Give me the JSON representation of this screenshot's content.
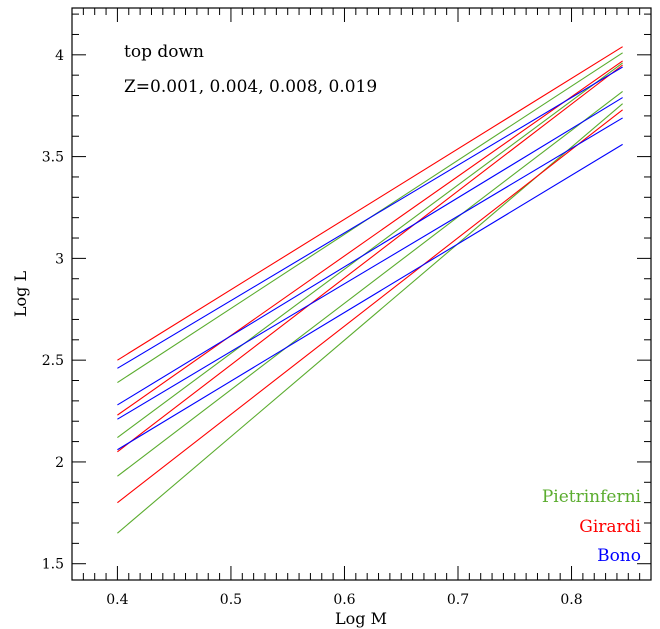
{
  "chart_data": {
    "type": "line",
    "title": "",
    "xlabel": "Log M",
    "ylabel": "Log L",
    "xlim": [
      0.36,
      0.87
    ],
    "ylim": [
      1.42,
      4.23
    ],
    "x_ticks": [
      0.4,
      0.5,
      0.6,
      0.7,
      0.8
    ],
    "x_tick_labels": [
      "0.4",
      "0.5",
      "0.6",
      "0.7",
      "0.8"
    ],
    "y_ticks": [
      1.5,
      2,
      2.5,
      3,
      3.5,
      4
    ],
    "y_tick_labels": [
      "1.5",
      "2",
      "2.5",
      "3",
      "3.5",
      "4"
    ],
    "grid": false,
    "legend_position": "bottom-right",
    "annotations": [
      "top down",
      "Z=0.001, 0.004, 0.008, 0.019"
    ],
    "groups": [
      {
        "name": "Pietrinferni",
        "color": "#5aac2e"
      },
      {
        "name": "Girardi",
        "color": "#ff0000"
      },
      {
        "name": "Bono",
        "color": "#0000ff"
      }
    ],
    "series": [
      {
        "group": "Pietrinferni",
        "color": "#5aac2e",
        "x": [
          0.4,
          0.845
        ],
        "y": [
          2.39,
          4.01
        ]
      },
      {
        "group": "Pietrinferni",
        "color": "#5aac2e",
        "x": [
          0.4,
          0.845
        ],
        "y": [
          2.12,
          3.96
        ]
      },
      {
        "group": "Pietrinferni",
        "color": "#5aac2e",
        "x": [
          0.4,
          0.845
        ],
        "y": [
          1.93,
          3.82
        ]
      },
      {
        "group": "Pietrinferni",
        "color": "#5aac2e",
        "x": [
          0.4,
          0.845
        ],
        "y": [
          1.65,
          3.76
        ]
      },
      {
        "group": "Girardi",
        "color": "#ff0000",
        "x": [
          0.4,
          0.845
        ],
        "y": [
          2.5,
          4.04
        ]
      },
      {
        "group": "Girardi",
        "color": "#ff0000",
        "x": [
          0.4,
          0.845
        ],
        "y": [
          2.23,
          3.97
        ]
      },
      {
        "group": "Girardi",
        "color": "#ff0000",
        "x": [
          0.4,
          0.845
        ],
        "y": [
          2.05,
          3.95
        ]
      },
      {
        "group": "Girardi",
        "color": "#ff0000",
        "x": [
          0.4,
          0.845
        ],
        "y": [
          1.8,
          3.73
        ]
      },
      {
        "group": "Bono",
        "color": "#0000ff",
        "x": [
          0.4,
          0.845
        ],
        "y": [
          2.46,
          3.94
        ]
      },
      {
        "group": "Bono",
        "color": "#0000ff",
        "x": [
          0.4,
          0.845
        ],
        "y": [
          2.28,
          3.79
        ]
      },
      {
        "group": "Bono",
        "color": "#0000ff",
        "x": [
          0.4,
          0.845
        ],
        "y": [
          2.21,
          3.69
        ]
      },
      {
        "group": "Bono",
        "color": "#0000ff",
        "x": [
          0.4,
          0.845
        ],
        "y": [
          2.06,
          3.56
        ]
      }
    ]
  }
}
